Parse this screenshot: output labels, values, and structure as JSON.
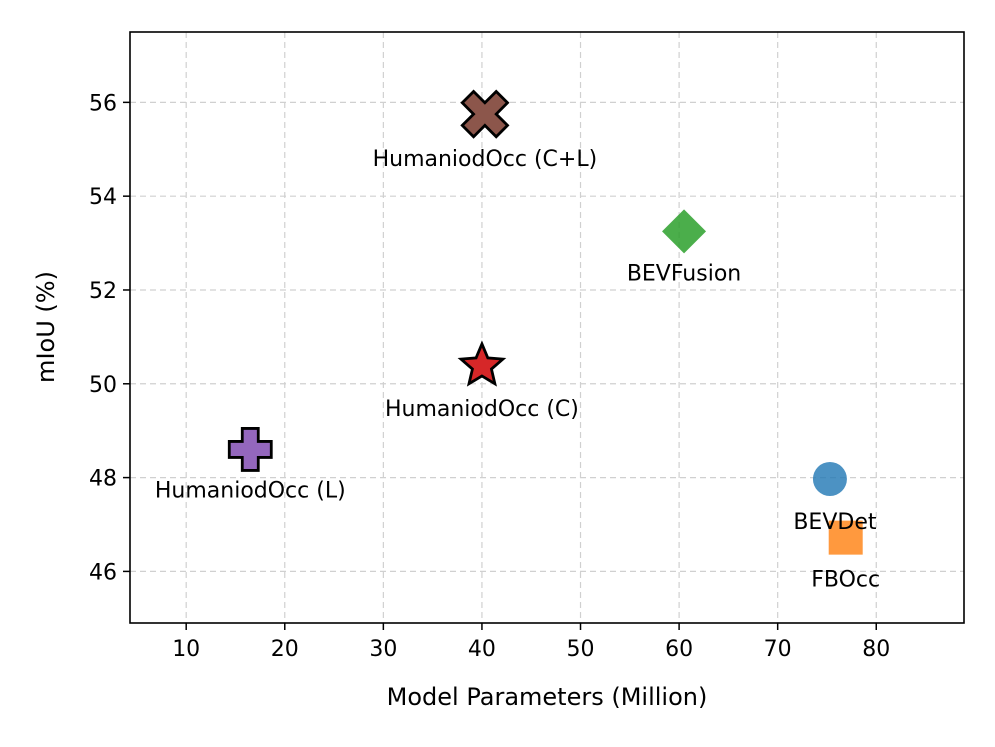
{
  "chart_data": {
    "type": "scatter",
    "title": "",
    "xlabel": "Model Parameters (Million)",
    "ylabel": "mIoU (%)",
    "xlim": [
      4.3,
      88.9
    ],
    "ylim": [
      44.9,
      57.5
    ],
    "xticks": [
      10,
      20,
      30,
      40,
      50,
      60,
      70,
      80
    ],
    "yticks": [
      46,
      48,
      50,
      52,
      54,
      56
    ],
    "grid": true,
    "legend": "none",
    "points": [
      {
        "name": "HumaniodOcc (C+L)",
        "x": 40.3,
        "y": 55.75,
        "marker": "X",
        "color": "#8c564b",
        "edge": "#000000"
      },
      {
        "name": "BEVFusion",
        "x": 60.5,
        "y": 53.25,
        "marker": "diamond",
        "color": "#2ca02c",
        "edge": "none"
      },
      {
        "name": "HumaniodOcc (C)",
        "x": 40.0,
        "y": 50.38,
        "marker": "star",
        "color": "#d62728",
        "edge": "#000000"
      },
      {
        "name": "HumaniodOcc (L)",
        "x": 16.5,
        "y": 48.6,
        "marker": "plus",
        "color": "#9467bd",
        "edge": "#000000"
      },
      {
        "name": "BEVDet",
        "x": 75.3,
        "y": 47.97,
        "marker": "circle",
        "color": "#1f77b4",
        "edge": "none"
      },
      {
        "name": "FBOcc",
        "x": 76.9,
        "y": 46.72,
        "marker": "square",
        "color": "#ff7f0e",
        "edge": "none"
      }
    ]
  }
}
